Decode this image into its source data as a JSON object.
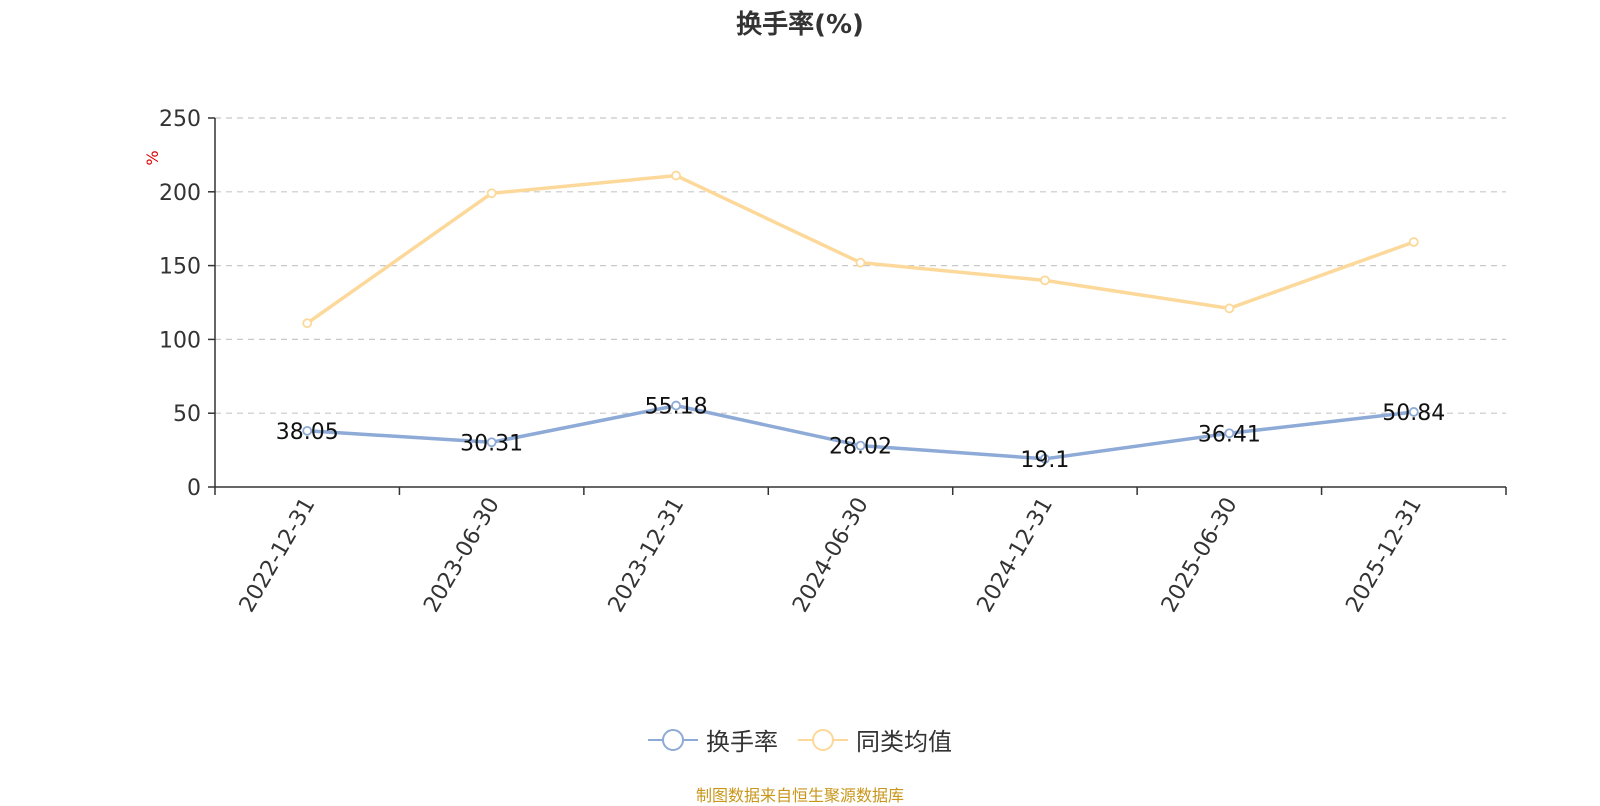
{
  "chart_data": {
    "type": "line",
    "title": "换手率(%)",
    "ylabel": "%",
    "ylim": [
      0,
      250
    ],
    "yticks": [
      0,
      50,
      100,
      150,
      200,
      250
    ],
    "grid": true,
    "legend_position": "bottom",
    "categories": [
      "2022-12-31",
      "2023-06-30",
      "2023-12-31",
      "2024-06-30",
      "2024-12-31",
      "2025-06-30",
      "2025-12-31"
    ],
    "series": [
      {
        "name": "换手率",
        "color": "#8eaad6",
        "values": [
          38.05,
          30.31,
          55.18,
          28.02,
          19.1,
          36.41,
          50.84
        ],
        "show_labels": true
      },
      {
        "name": "同类均值",
        "color": "#fcd99a",
        "values": [
          111,
          199,
          211,
          152,
          140,
          121,
          166
        ],
        "show_labels": false
      }
    ]
  },
  "footer": {
    "source": "制图数据来自恒生聚源数据库",
    "source_color": "#c9961a"
  },
  "colors": {
    "unit_label": "#e00000"
  }
}
